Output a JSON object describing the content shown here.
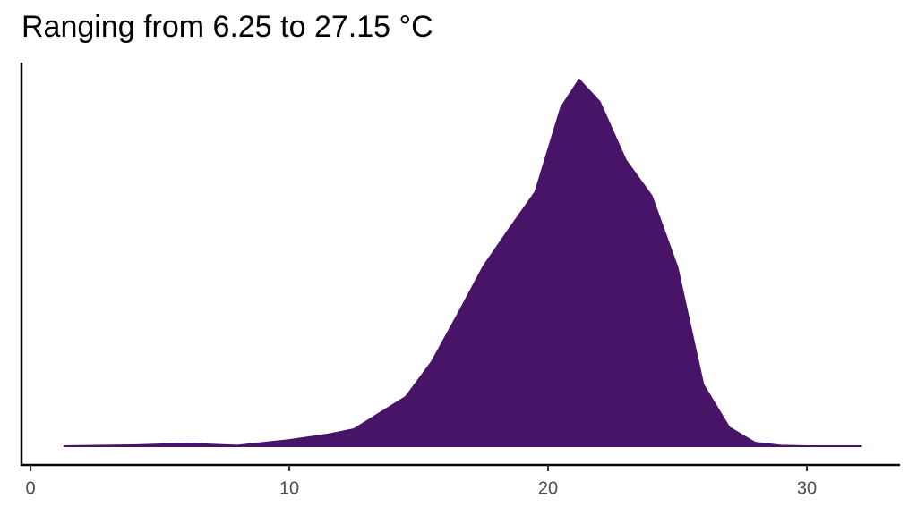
{
  "chart_data": {
    "type": "area",
    "title": "Ranging from 6.25 to 27.15 °C",
    "x": [
      1.3,
      4,
      6,
      8,
      10,
      11.5,
      12.5,
      13.5,
      14.5,
      15.5,
      16.5,
      17.5,
      18.5,
      19.5,
      20.5,
      21.2,
      22,
      23,
      24,
      25,
      26,
      27,
      28,
      29,
      30,
      32.1
    ],
    "values": [
      0,
      0.0003,
      0.0009,
      0.0002,
      0.0021,
      0.004,
      0.0058,
      0.0113,
      0.0168,
      0.0287,
      0.0448,
      0.0613,
      0.0741,
      0.0866,
      0.1155,
      0.125,
      0.1174,
      0.0976,
      0.0854,
      0.061,
      0.021,
      0.0064,
      0.0012,
      0.0002,
      0,
      0
    ],
    "color": "#481467",
    "xlim": [
      -0.35,
      33.6
    ],
    "xticks": [
      0,
      10,
      20,
      30
    ],
    "ylim": [
      -0.0064,
      0.1308
    ]
  }
}
